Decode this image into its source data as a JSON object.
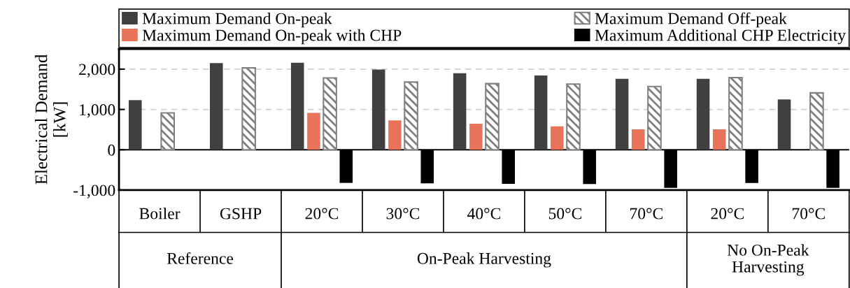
{
  "chart_data": {
    "type": "bar",
    "ylabel": "Electrical Demand\n[kW]",
    "categories": [
      "Boiler",
      "GSHP",
      "20°C",
      "30°C",
      "40°C",
      "50°C",
      "70°C",
      "20°C",
      "70°C"
    ],
    "series": [
      {
        "name": "Maximum Demand On-peak",
        "color": "#404040",
        "values": [
          1230,
          2150,
          2160,
          1990,
          1900,
          1840,
          1760,
          1760,
          1250
        ]
      },
      {
        "name": "Maximum Demand On-peak with CHP",
        "color": "#e8735a",
        "values": [
          null,
          null,
          914,
          730,
          644,
          580,
          506,
          506,
          null
        ]
      },
      {
        "name": "Maximum Demand Off-peak",
        "color": "#808080",
        "values": [
          914,
          2030,
          1780,
          1680,
          1640,
          1630,
          1570,
          1790,
          1410
        ]
      },
      {
        "name": "Maximum Additional CHP Electricity",
        "color": "#000000",
        "values": [
          null,
          null,
          -822,
          -833,
          -845,
          -850,
          -943,
          -822,
          -943
        ]
      }
    ],
    "ylim": [
      -1000,
      2500
    ],
    "yticks": [
      {
        "value": -1000,
        "label": "-1,000"
      },
      {
        "value": 0,
        "label": "0"
      },
      {
        "value": 1000,
        "label": "1,000"
      },
      {
        "value": 2000,
        "label": "2,000"
      }
    ],
    "grid": "y",
    "legend": "top",
    "ref_lines": [
      {
        "axis": "y",
        "value": 0,
        "color": "#000000"
      }
    ],
    "annotations": [
      "Reference",
      "On-Peak Harvesting",
      "No On-Peak\nHarvesting"
    ]
  }
}
